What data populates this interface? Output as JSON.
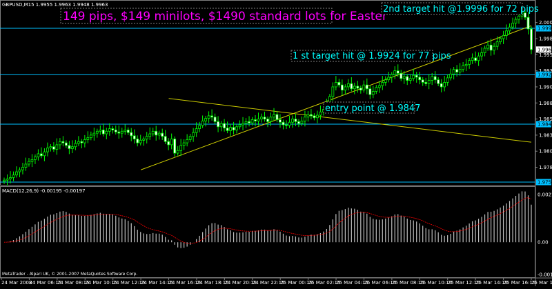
{
  "symbol_header": "GBPUSD,M15  1.9955 1.9963 1.9948 1.9963",
  "headline": "149 pips, $149 minilots, $1490 standard lots for Easter",
  "annotations": {
    "target2": "2nd target hit @1.9996 for 72 pips",
    "target1": "1 st target hit @ 1.9924 for 77 pips",
    "entry": "entry point @ 1.9847"
  },
  "price_axis": {
    "ticks": [
      "2.0005",
      "1.9980",
      "1.9955",
      "1.9930",
      "1.9905",
      "1.9880",
      "1.9855",
      "1.9830",
      "1.9805",
      "1.9780"
    ],
    "boxes": [
      {
        "label": "1.9996",
        "kind": "hline"
      },
      {
        "label": "1.9963",
        "kind": "bid"
      },
      {
        "label": "1.9924",
        "kind": "hline"
      },
      {
        "label": "1.9847",
        "kind": "hline"
      },
      {
        "label": "1.9757",
        "kind": "hline"
      }
    ]
  },
  "macd": {
    "label": "MACD(12,26,9) -0.00195 -0.00197",
    "ticks": [
      "0.00213",
      "0.00",
      "-0.00144"
    ]
  },
  "time_axis": [
    "24 Mar 2008",
    "24 Mar 06:15",
    "24 Mar 08:15",
    "24 Mar 10:15",
    "24 Mar 12:15",
    "24 Mar 14:15",
    "24 Mar 16:15",
    "24 Mar 18:15",
    "24 Mar 20:15",
    "24 Mar 22:15",
    "25 Mar 00:15",
    "25 Mar 02:15",
    "25 Mar 04:15",
    "25 Mar 06:15",
    "25 Mar 08:15",
    "25 Mar 10:15",
    "25 Mar 12:15",
    "25 Mar 14:15",
    "25 Mar 16:15",
    "25 Mar 18:15"
  ],
  "copyright": "MetaTrader - Alpari UK, © 2001-2007 MetaQuotes Software Corp.",
  "colors": {
    "background": "#000000",
    "candle": "#00ff00",
    "hline": "#00bfff",
    "trendline": "#cccc00",
    "signal": "#ff0000",
    "histogram": "#c0c0c0",
    "annotation": "#00ffff",
    "headline": "#ff00ff"
  },
  "chart_data": {
    "type": "candlestick",
    "series_close": [
      1.976,
      1.9762,
      1.9764,
      1.9768,
      1.9773,
      1.9776,
      1.978,
      1.9785,
      1.9789,
      1.9792,
      1.9796,
      1.9801,
      1.9798,
      1.9804,
      1.981,
      1.9812,
      1.9808,
      1.9815,
      1.982,
      1.9818,
      1.9814,
      1.9809,
      1.9812,
      1.9817,
      1.982,
      1.9818,
      1.9823,
      1.9826,
      1.983,
      1.9833,
      1.9836,
      1.9838,
      1.9832,
      1.9836,
      1.984,
      1.9838,
      1.9835,
      1.9833,
      1.9836,
      1.9838,
      1.9834,
      1.9829,
      1.9824,
      1.9818,
      1.9822,
      1.9824,
      1.9828,
      1.9832,
      1.9836,
      1.983,
      1.9833,
      1.9828,
      1.982,
      1.9815,
      1.9824,
      1.9802,
      1.9806,
      1.9814,
      1.9818,
      1.9823,
      1.9828,
      1.9834,
      1.984,
      1.9845,
      1.9852,
      1.9856,
      1.986,
      1.9858,
      1.9851,
      1.9843,
      1.9848,
      1.9841,
      1.9837,
      1.9842,
      1.9838,
      1.9843,
      1.9846,
      1.9848,
      1.9851,
      1.9849,
      1.9854,
      1.9852,
      1.9855,
      1.9858,
      1.9855,
      1.9851,
      1.9858,
      1.9862,
      1.9854,
      1.985,
      1.9846,
      1.9845,
      1.985,
      1.9855,
      1.9851,
      1.9848,
      1.9852,
      1.9858,
      1.9862,
      1.986,
      1.9857,
      1.9861,
      1.9866,
      1.987,
      1.9878,
      1.989,
      1.9905,
      1.9912,
      1.9908,
      1.99,
      1.9905,
      1.991,
      1.9902,
      1.9906,
      1.9903,
      1.99,
      1.9908,
      1.9902,
      1.9893,
      1.9898,
      1.9904,
      1.9907,
      1.9912,
      1.9916,
      1.992,
      1.9924,
      1.993,
      1.9926,
      1.9918,
      1.9921,
      1.9915,
      1.9918,
      1.9923,
      1.992,
      1.9916,
      1.9912,
      1.991,
      1.9915,
      1.9921,
      1.9916,
      1.991,
      1.9905,
      1.9912,
      1.9919,
      1.9925,
      1.9932,
      1.9928,
      1.9932,
      1.9938,
      1.994,
      1.9946,
      1.995,
      1.9946,
      1.9953,
      1.9958,
      1.9965,
      1.997,
      1.9962,
      1.9968,
      1.9975,
      1.998,
      1.9985,
      1.9992,
      1.9998,
      2.0004,
      2.001,
      2.0015,
      2.002,
      2.0013,
      1.9995,
      1.9963
    ],
    "x_ticks": [
      "24 Mar 2008",
      "24 Mar 06:15",
      "24 Mar 08:15",
      "24 Mar 10:15",
      "24 Mar 12:15",
      "24 Mar 14:15",
      "24 Mar 16:15",
      "24 Mar 18:15",
      "24 Mar 20:15",
      "24 Mar 22:15",
      "25 Mar 00:15",
      "25 Mar 02:15",
      "25 Mar 04:15",
      "25 Mar 06:15",
      "25 Mar 08:15",
      "25 Mar 10:15",
      "25 Mar 12:15",
      "25 Mar 14:15",
      "25 Mar 16:15",
      "25 Mar 18:15"
    ],
    "y_range": [
      1.9757,
      2.0025
    ],
    "horizontal_lines": [
      1.9996,
      1.9924,
      1.9847,
      1.9757
    ],
    "trendlines": [
      {
        "from": [
          "24 Mar 14:15",
          1.9776
        ],
        "to": [
          "25 Mar 18:15",
          2.0
        ]
      },
      {
        "from": [
          "24 Mar 16:15",
          1.9887
        ],
        "to": [
          "25 Mar 18:15",
          1.9819
        ]
      }
    ],
    "macd_range": [
      -0.00144,
      0.00213
    ]
  }
}
